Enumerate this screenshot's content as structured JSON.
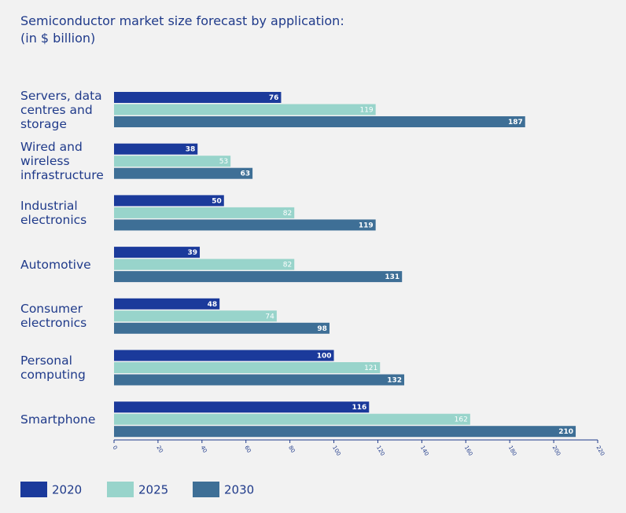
{
  "chart_data": {
    "type": "bar",
    "orientation": "horizontal",
    "title": "Semiconductor market size forecast by application:",
    "subtitle": "(in $ billion)",
    "categories": [
      "Servers, data centres and storage",
      "Wired and wireless infrastructure",
      "Industrial electronics",
      "Automotive",
      "Consumer electronics",
      "Personal computing",
      "Smartphone"
    ],
    "series": [
      {
        "name": "2020",
        "color": "#1b3a9b",
        "values": [
          76,
          38,
          50,
          39,
          48,
          100,
          116
        ]
      },
      {
        "name": "2025",
        "color": "#98d4cb",
        "values": [
          119,
          53,
          82,
          82,
          74,
          121,
          162
        ]
      },
      {
        "name": "2030",
        "color": "#3e6f96",
        "values": [
          187,
          63,
          119,
          131,
          98,
          132,
          210
        ]
      }
    ],
    "xlim": [
      0,
      220
    ],
    "xticks": [
      0,
      20,
      40,
      60,
      80,
      100,
      120,
      140,
      160,
      180,
      200,
      220
    ],
    "legend": "bottom-left"
  }
}
